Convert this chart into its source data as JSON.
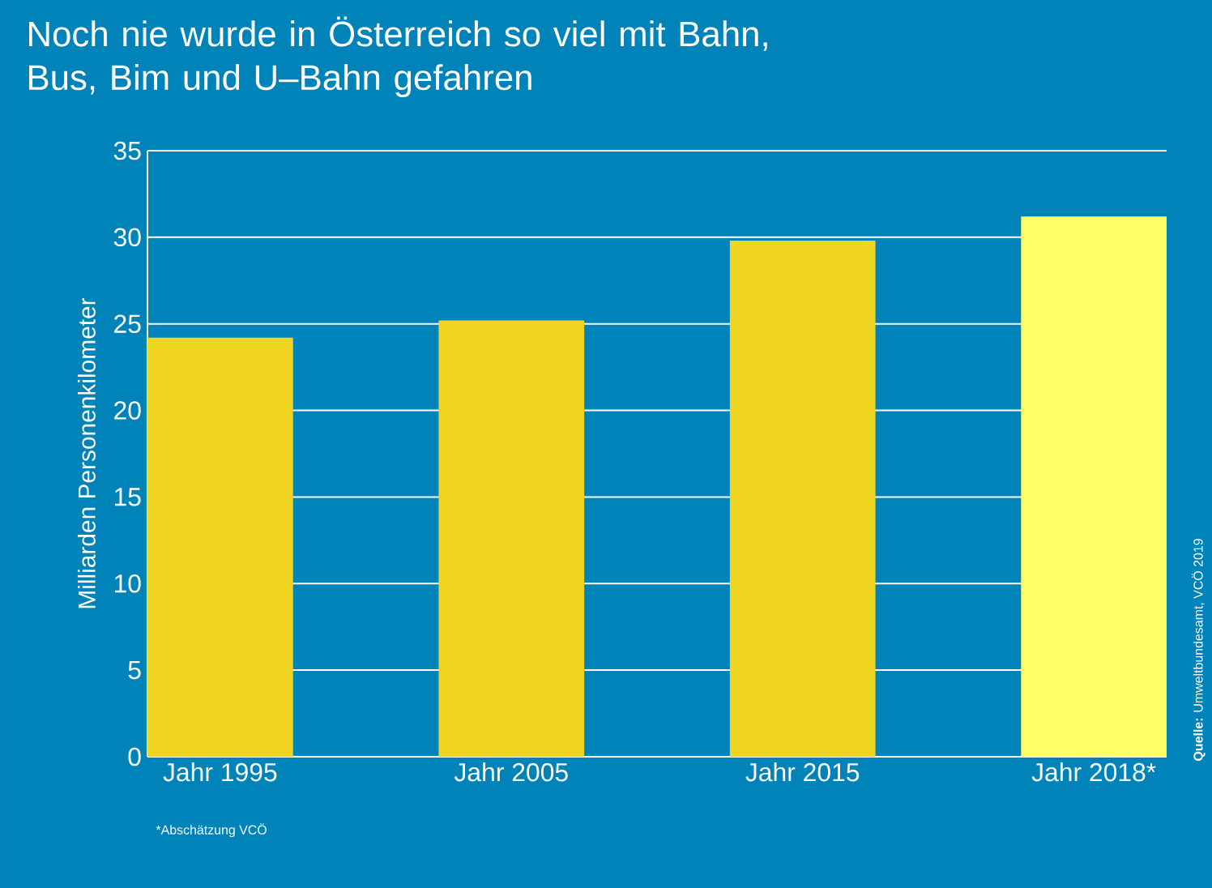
{
  "chart_data": {
    "type": "bar",
    "title": "Noch nie wurde in Österreich so viel mit Bahn, Bus, Bim und U–Bahn gefahren",
    "ylabel": "Milliarden Personenkilometer",
    "categories": [
      "Jahr 1995",
      "Jahr 2005",
      "Jahr 2015",
      "Jahr 2018*"
    ],
    "values": [
      24.2,
      25.2,
      29.8,
      31.2
    ],
    "colors": [
      "#f0d422",
      "#f0d422",
      "#f0d422",
      "#ffff66"
    ],
    "ylim": [
      0,
      35
    ],
    "yticks": [
      0,
      5,
      10,
      15,
      20,
      25,
      30,
      35
    ],
    "grid": "y",
    "annotations": [
      "*Abschätzung VCÖ",
      "**Quelle:** Umweltbundesamt, VCÖ 2019"
    ]
  }
}
